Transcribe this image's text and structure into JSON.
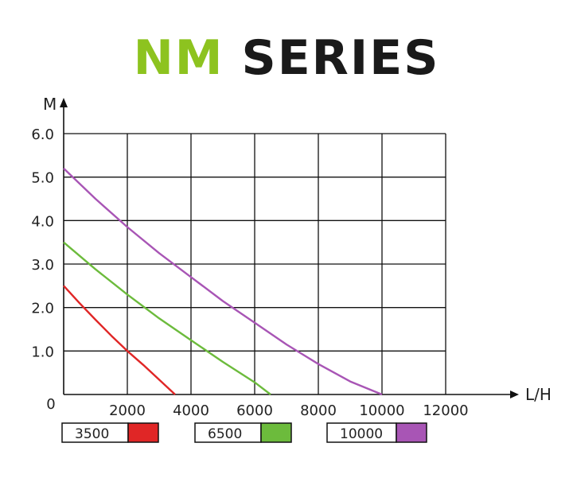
{
  "title": {
    "part1": "NM",
    "part2": "SERIES"
  },
  "colors": {
    "part1": "#8dc31f",
    "part2": "#1a1a1a",
    "grid": "#111111"
  },
  "chart_data": {
    "type": "line",
    "xlabel": "L/H",
    "ylabel": "M",
    "xlim": [
      0,
      12000
    ],
    "ylim": [
      0,
      6.0
    ],
    "x_ticks": [
      "2000",
      "4000",
      "6000",
      "8000",
      "10000",
      "12000"
    ],
    "x_tick_values": [
      2000,
      4000,
      6000,
      8000,
      10000,
      12000
    ],
    "y_ticks": [
      "1.0",
      "2.0",
      "3.0",
      "4.0",
      "5.0",
      "6.0"
    ],
    "y_tick_values": [
      1,
      2,
      3,
      4,
      5,
      6
    ],
    "origin_label": "0",
    "grid": true,
    "legend_position": "bottom",
    "series": [
      {
        "name": "3500",
        "color": "#e02626",
        "x": [
          0,
          500,
          1000,
          1500,
          2000,
          2500,
          3000,
          3500
        ],
        "y": [
          2.5,
          2.1,
          1.72,
          1.35,
          1.0,
          0.68,
          0.34,
          0.0
        ]
      },
      {
        "name": "6500",
        "color": "#6cbb3c",
        "x": [
          0,
          1000,
          2000,
          3000,
          4000,
          5000,
          6000,
          6500
        ],
        "y": [
          3.5,
          2.88,
          2.3,
          1.75,
          1.25,
          0.75,
          0.28,
          0.0
        ]
      },
      {
        "name": "10000",
        "color": "#a855b5",
        "x": [
          0,
          1000,
          2000,
          3000,
          4000,
          5000,
          6000,
          7000,
          8000,
          9000,
          10000
        ],
        "y": [
          5.2,
          4.5,
          3.85,
          3.25,
          2.7,
          2.15,
          1.65,
          1.15,
          0.7,
          0.3,
          0.0
        ]
      }
    ]
  }
}
